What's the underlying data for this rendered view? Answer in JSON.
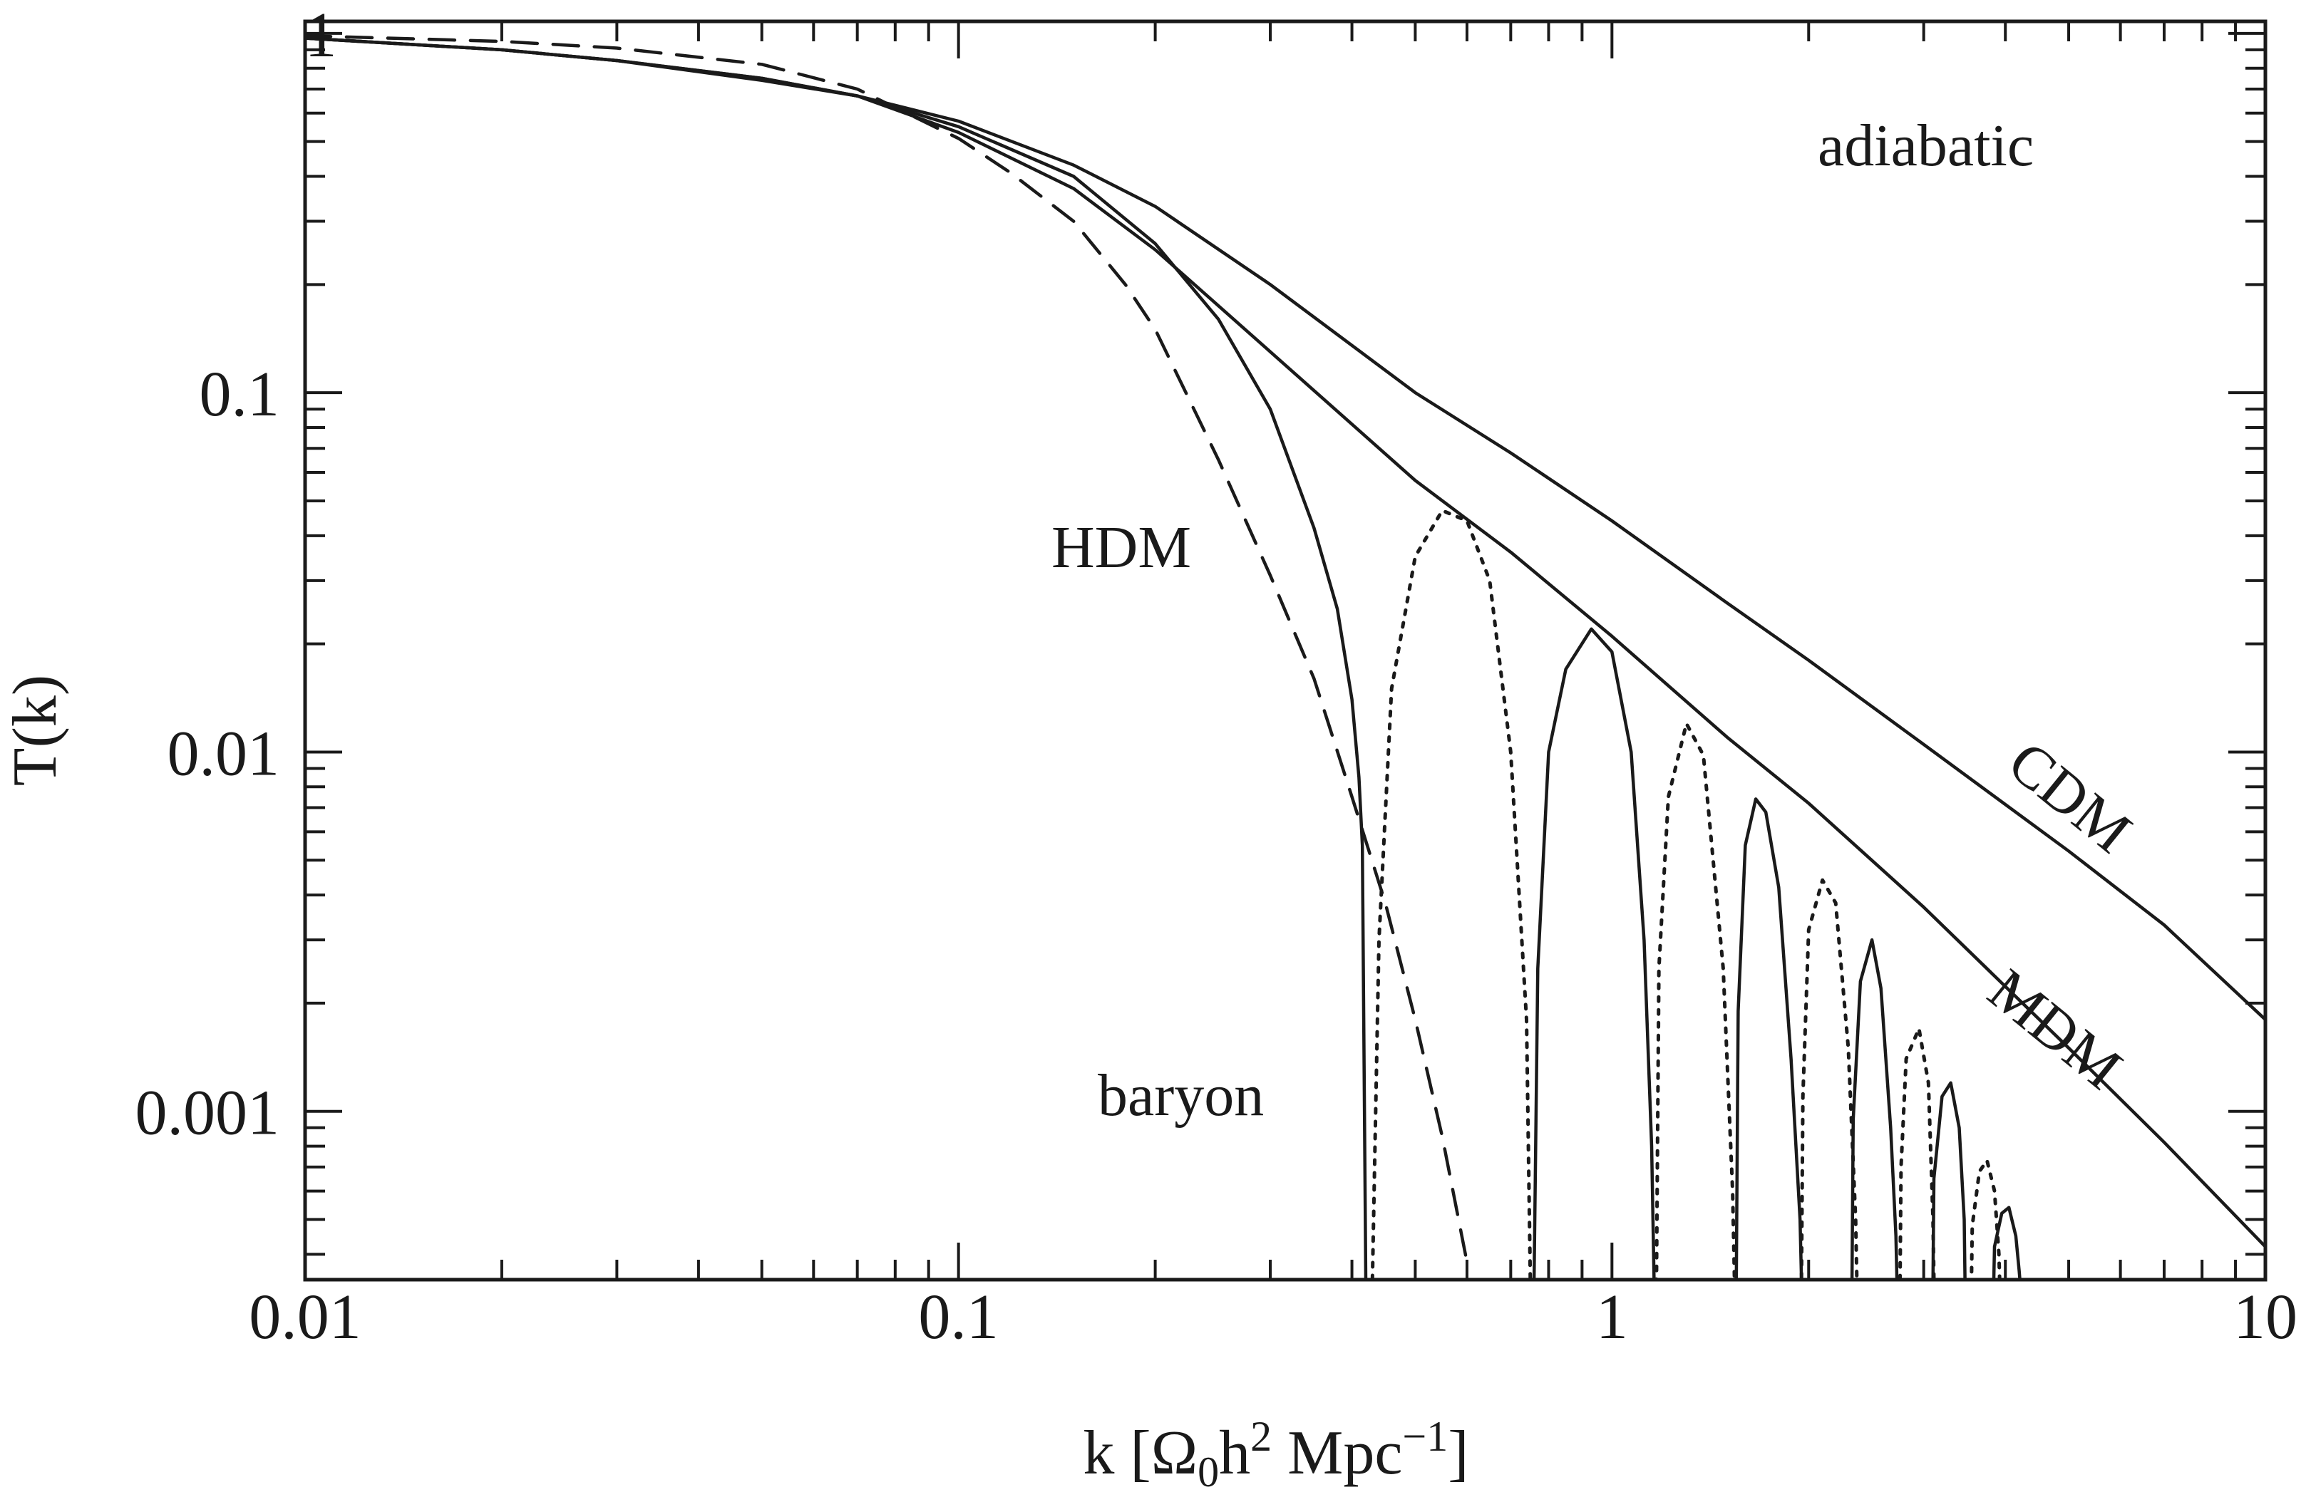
{
  "chart_data": {
    "type": "line",
    "xlabel": "k [Ω0h2 Mpc−1]",
    "ylabel": "T(k)",
    "x_scale": "log",
    "y_scale": "log",
    "xlim": [
      0.01,
      10
    ],
    "ylim": [
      0.00034,
      1.08
    ],
    "x_ticks": [
      {
        "value": 0.01,
        "label": "0.01"
      },
      {
        "value": 0.1,
        "label": "0.1"
      },
      {
        "value": 1,
        "label": "1"
      },
      {
        "value": 10,
        "label": "10"
      }
    ],
    "y_ticks": [
      {
        "value": 1,
        "label": "1"
      },
      {
        "value": 0.1,
        "label": "0.1"
      },
      {
        "value": 0.01,
        "label": "0.01"
      },
      {
        "value": 0.001,
        "label": "0.001"
      }
    ],
    "annotations": {
      "adiabatic": "adiabatic",
      "cdm": "CDM",
      "mdm": "MDM",
      "hdm": "HDM",
      "baryon": "baryon"
    },
    "series": [
      {
        "style": "solid",
        "x": [
          0.01,
          0.02,
          0.03,
          0.05,
          0.07,
          0.1,
          0.15,
          0.2,
          0.3,
          0.5,
          0.7,
          1,
          1.5,
          2,
          3,
          5,
          7,
          10
        ],
        "y": [
          0.97,
          0.9,
          0.84,
          0.75,
          0.67,
          0.57,
          0.43,
          0.33,
          0.2,
          0.1,
          0.068,
          0.044,
          0.026,
          0.018,
          0.0105,
          0.0053,
          0.0033,
          0.0018
        ]
      },
      {
        "style": "solid",
        "x": [
          0.01,
          0.02,
          0.03,
          0.05,
          0.07,
          0.1,
          0.15,
          0.2,
          0.3,
          0.5,
          0.7,
          1,
          1.5,
          2,
          3,
          5,
          7,
          10
        ],
        "y": [
          0.97,
          0.9,
          0.84,
          0.74,
          0.67,
          0.53,
          0.37,
          0.25,
          0.13,
          0.057,
          0.036,
          0.021,
          0.011,
          0.0072,
          0.0037,
          0.0015,
          0.00082,
          0.00042
        ]
      },
      {
        "style": "solid",
        "x": [
          0.01,
          0.02,
          0.03,
          0.05,
          0.07,
          0.1,
          0.15,
          0.2,
          0.25,
          0.3,
          0.35,
          0.38,
          0.4,
          0.41,
          0.415,
          0.42
        ],
        "y": [
          0.97,
          0.9,
          0.84,
          0.75,
          0.67,
          0.55,
          0.4,
          0.26,
          0.16,
          0.09,
          0.042,
          0.025,
          0.014,
          0.0085,
          0.0055,
          0.00034
        ]
      },
      {
        "style": "dashed",
        "x": [
          0.01,
          0.02,
          0.03,
          0.05,
          0.07,
          0.1,
          0.12,
          0.15,
          0.18,
          0.2,
          0.25,
          0.3,
          0.35,
          0.4,
          0.45,
          0.5,
          0.55,
          0.6
        ],
        "y": [
          0.985,
          0.95,
          0.91,
          0.82,
          0.7,
          0.51,
          0.41,
          0.3,
          0.2,
          0.15,
          0.065,
          0.031,
          0.016,
          0.0075,
          0.0038,
          0.0018,
          0.00085,
          0.00038
        ]
      },
      {
        "style": "solid",
        "x": [
          0.76,
          0.77,
          0.8,
          0.85,
          0.93,
          1.0,
          1.07,
          1.12,
          1.15,
          1.16,
          1.55,
          1.56,
          1.6,
          1.66,
          1.72,
          1.8,
          1.88,
          1.94,
          1.95,
          2.33,
          2.34,
          2.4,
          2.5,
          2.58,
          2.67,
          2.72,
          2.73,
          3.1,
          3.11,
          3.2,
          3.3,
          3.4,
          3.46,
          3.47,
          3.84,
          3.85,
          3.95,
          4.05,
          4.15,
          4.2,
          4.21
        ],
        "y": [
          0.00034,
          0.0025,
          0.01,
          0.017,
          0.022,
          0.019,
          0.01,
          0.003,
          0.0008,
          0.00034,
          0.00034,
          0.0019,
          0.0055,
          0.0074,
          0.0068,
          0.0042,
          0.0014,
          0.0005,
          0.00034,
          0.00034,
          0.00095,
          0.0023,
          0.003,
          0.0022,
          0.0009,
          0.00045,
          0.00034,
          0.00034,
          0.00065,
          0.0011,
          0.0012,
          0.0009,
          0.0005,
          0.00034,
          0.00034,
          0.00042,
          0.00052,
          0.00054,
          0.00045,
          0.00036,
          0.00034
        ]
      },
      {
        "style": "dotted",
        "x": [
          0.43,
          0.44,
          0.46,
          0.5,
          0.55,
          0.6,
          0.65,
          0.7,
          0.74,
          0.75,
          1.17,
          1.18,
          1.22,
          1.3,
          1.38,
          1.48,
          1.53,
          1.54,
          1.95,
          1.96,
          2.0,
          2.1,
          2.2,
          2.3,
          2.36,
          2.37,
          2.76,
          2.77,
          2.82,
          2.95,
          3.05,
          3.1,
          3.11,
          3.55,
          3.56,
          3.65,
          3.75,
          3.85,
          3.91,
          3.92
        ],
        "y": [
          0.00034,
          0.003,
          0.015,
          0.035,
          0.047,
          0.044,
          0.03,
          0.01,
          0.0018,
          0.00034,
          0.00034,
          0.0025,
          0.0075,
          0.012,
          0.0098,
          0.0025,
          0.0006,
          0.00034,
          0.00034,
          0.0011,
          0.0032,
          0.0044,
          0.0038,
          0.0015,
          0.0005,
          0.00034,
          0.00034,
          0.0007,
          0.0014,
          0.0017,
          0.0012,
          0.0005,
          0.00034,
          0.00034,
          0.00048,
          0.00068,
          0.00073,
          0.0006,
          0.0004,
          0.00034
        ]
      }
    ]
  }
}
